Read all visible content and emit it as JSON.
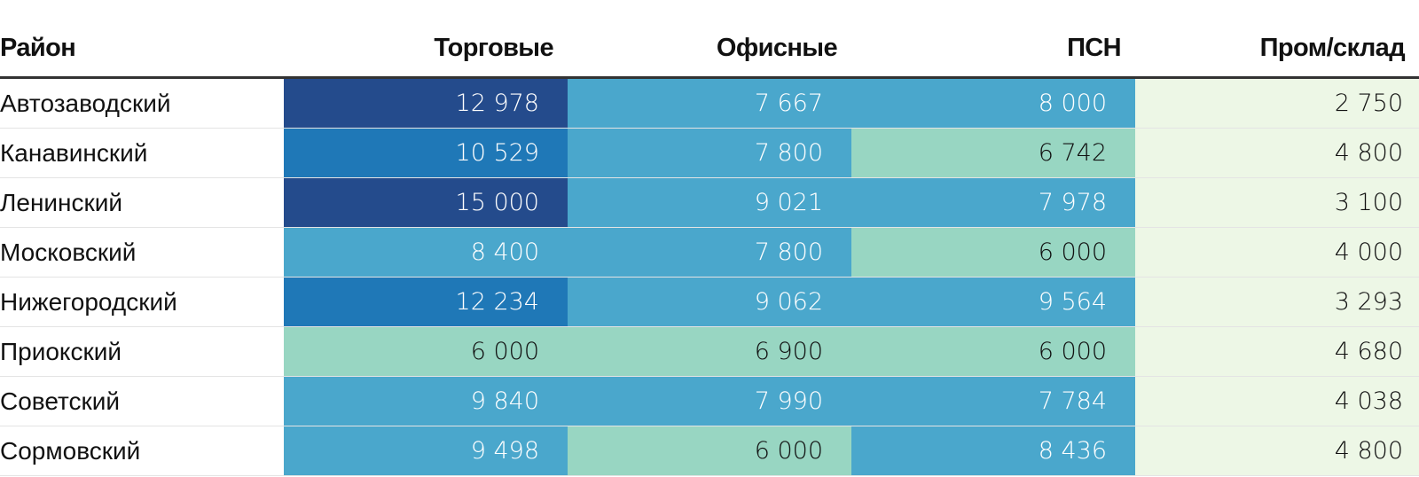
{
  "chart_data": {
    "type": "table",
    "columns": [
      "Район",
      "Торговые",
      "Офисные",
      "ПСН",
      "Пром/склад"
    ],
    "rows": [
      {
        "name": "Автозаводский",
        "values": [
          "12 978",
          "7 667",
          "8 000",
          "2 750"
        ]
      },
      {
        "name": "Канавинский",
        "values": [
          "10 529",
          "7 800",
          "6 742",
          "4 800"
        ]
      },
      {
        "name": "Ленинский",
        "values": [
          "15 000",
          "9 021",
          "7 978",
          "3 100"
        ]
      },
      {
        "name": "Московский",
        "values": [
          "8 400",
          "7 800",
          "6 000",
          "4 000"
        ]
      },
      {
        "name": "Нижегородский",
        "values": [
          "12 234",
          "9 062",
          "9 564",
          "3 293"
        ]
      },
      {
        "name": "Приокский",
        "values": [
          "6 000",
          "6 900",
          "6 000",
          "4 680"
        ]
      },
      {
        "name": "Советский",
        "values": [
          "9 840",
          "7 990",
          "7 784",
          "4 038"
        ]
      },
      {
        "name": "Сормовский",
        "values": [
          "9 498",
          "6 000",
          "8 436",
          "4 800"
        ]
      }
    ],
    "color_scale": [
      {
        "min": 0,
        "color": "#edf7e6",
        "text": "#111111"
      },
      {
        "min": 5000,
        "color": "#98d6c2",
        "text": "#111111"
      },
      {
        "min": 7000,
        "color": "#4aa7cc",
        "text": "#ffffff"
      },
      {
        "min": 10000,
        "color": "#1f78b7",
        "text": "#ffffff"
      },
      {
        "min": 12500,
        "color": "#244b8c",
        "text": "#ffffff"
      }
    ]
  }
}
